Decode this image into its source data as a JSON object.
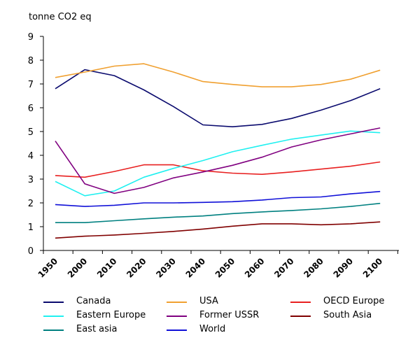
{
  "chart_data": {
    "type": "line",
    "title": "",
    "ylabel": "tonne CO2 eq",
    "xlabel": "",
    "ylim": [
      0,
      9
    ],
    "y_ticks": [
      "0",
      "1",
      "2",
      "3",
      "4",
      "5",
      "6",
      "7",
      "8",
      "9"
    ],
    "categories": [
      "1950",
      "2000",
      "2010",
      "2020",
      "2030",
      "2040",
      "2050",
      "2060",
      "2070",
      "2080",
      "2090",
      "2100"
    ],
    "grid": false,
    "legend_position": "bottom",
    "series": [
      {
        "name": "Canada",
        "color": "#0a0a6e",
        "values": [
          6.8,
          7.6,
          7.35,
          6.75,
          6.05,
          5.28,
          5.2,
          5.3,
          5.55,
          5.9,
          6.3,
          6.8
        ]
      },
      {
        "name": "USA",
        "color": "#f0a030",
        "values": [
          7.27,
          7.5,
          7.75,
          7.85,
          7.5,
          7.1,
          6.98,
          6.88,
          6.88,
          6.98,
          7.2,
          7.58
        ]
      },
      {
        "name": "OECD Europe",
        "color": "#e82020",
        "values": [
          3.15,
          3.08,
          3.32,
          3.6,
          3.6,
          3.35,
          3.25,
          3.2,
          3.3,
          3.42,
          3.54,
          3.72
        ]
      },
      {
        "name": "Eastern Europe",
        "color": "#20f0f0",
        "values": [
          2.9,
          2.3,
          2.5,
          3.08,
          3.45,
          3.78,
          4.15,
          4.42,
          4.68,
          4.85,
          5.02,
          4.95
        ]
      },
      {
        "name": "Former USSR",
        "color": "#800080",
        "values": [
          4.6,
          2.8,
          2.4,
          2.65,
          3.05,
          3.3,
          3.58,
          3.92,
          4.35,
          4.65,
          4.9,
          5.15
        ]
      },
      {
        "name": "South Asia",
        "color": "#800000",
        "values": [
          0.52,
          0.6,
          0.65,
          0.72,
          0.8,
          0.9,
          1.02,
          1.12,
          1.12,
          1.08,
          1.12,
          1.2
        ]
      },
      {
        "name": "East asia",
        "color": "#008080",
        "values": [
          1.17,
          1.17,
          1.25,
          1.33,
          1.4,
          1.45,
          1.55,
          1.62,
          1.68,
          1.75,
          1.85,
          1.98
        ]
      },
      {
        "name": "World",
        "color": "#1010d8",
        "values": [
          1.93,
          1.85,
          1.9,
          2.0,
          2.0,
          2.02,
          2.05,
          2.12,
          2.22,
          2.25,
          2.38,
          2.48
        ]
      }
    ]
  }
}
